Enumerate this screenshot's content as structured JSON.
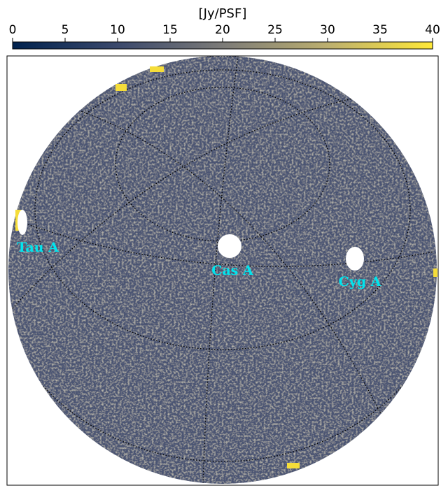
{
  "chart_data": {
    "type": "skymap",
    "colorbar": {
      "label": "[Jy/PSF]",
      "clim": [
        0,
        40
      ],
      "ticks": [
        0,
        5,
        10,
        15,
        20,
        25,
        30,
        35,
        40
      ]
    },
    "annotations": [
      "Tau A",
      "Cas A",
      "Cyg A"
    ]
  }
}
